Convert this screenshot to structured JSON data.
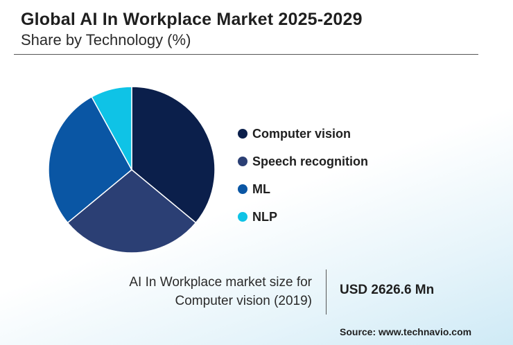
{
  "chart_data": {
    "type": "pie",
    "title": "Global AI In Workplace Market 2025-2029",
    "subtitle": "Share by Technology (%)",
    "categories": [
      "Computer vision",
      "Speech recognition",
      "ML",
      "NLP"
    ],
    "values": [
      36,
      28,
      28,
      8
    ],
    "colors": [
      "#0b1f4b",
      "#2b3f74",
      "#0a56a4",
      "#0fc3e6"
    ],
    "legend_position": "right"
  },
  "info": {
    "label_line1": "AI In Workplace market size for",
    "label_line2": "Computer vision (2019)",
    "value": "USD 2626.6 Mn"
  },
  "source": "Source: www.technavio.com"
}
